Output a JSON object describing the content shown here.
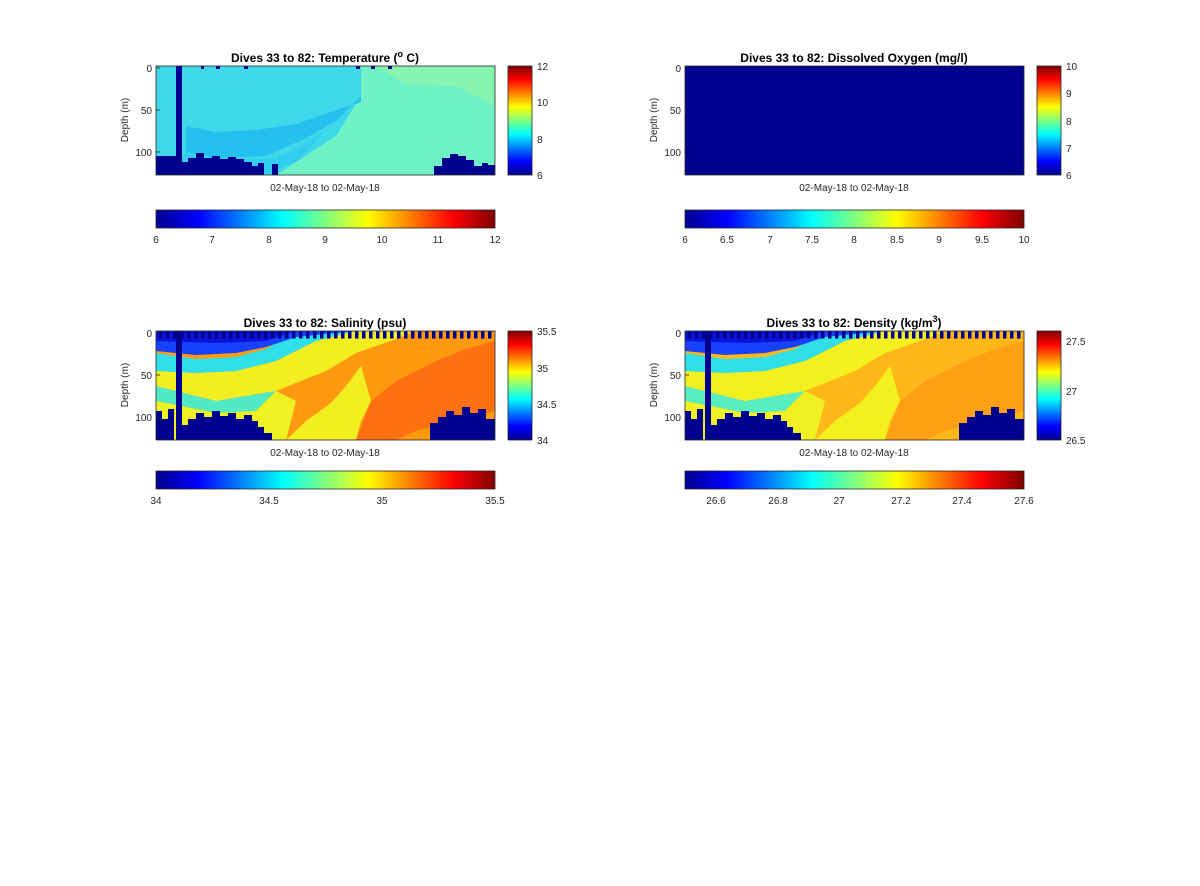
{
  "figure": {
    "panels": [
      {
        "id": "temperature",
        "title_text": "Dives 33 to 82: Temperature (",
        "title_sup": "o",
        "title_suffix": " C)",
        "ylabel": "Depth (m)",
        "xlabel": "02-May-18 to 02-May-18",
        "yticks": [
          "0",
          "50",
          "100"
        ],
        "cbar_ticks": [
          "12",
          "10",
          "8",
          "6"
        ],
        "hbar_ticks": [
          "6",
          "7",
          "8",
          "9",
          "10",
          "11",
          "12"
        ]
      },
      {
        "id": "oxygen",
        "title_text": "Dives 33 to 82: Dissolved Oxygen (mg/l)",
        "title_sup": "",
        "title_suffix": "",
        "ylabel": "Depth (m)",
        "xlabel": "02-May-18 to 02-May-18",
        "yticks": [
          "0",
          "50",
          "100"
        ],
        "cbar_ticks": [
          "10",
          "9",
          "8",
          "7",
          "6"
        ],
        "hbar_ticks": [
          "6",
          "6.5",
          "7",
          "7.5",
          "8",
          "8.5",
          "9",
          "9.5",
          "10"
        ]
      },
      {
        "id": "salinity",
        "title_text": "Dives 33 to 82: Salinity (psu)",
        "title_sup": "",
        "title_suffix": "",
        "ylabel": "Depth (m)",
        "xlabel": "02-May-18 to 02-May-18",
        "yticks": [
          "0",
          "50",
          "100"
        ],
        "cbar_ticks": [
          "35.5",
          "35",
          "34.5",
          "34"
        ],
        "hbar_ticks": [
          "34",
          "34.5",
          "35",
          "35.5"
        ]
      },
      {
        "id": "density",
        "title_text": "Dives 33 to 82: Density (kg/m",
        "title_sup": "3",
        "title_suffix": ")",
        "ylabel": "Depth (m)",
        "xlabel": "02-May-18 to 02-May-18",
        "yticks": [
          "0",
          "50",
          "100"
        ],
        "cbar_ticks": [
          "27.5",
          "27",
          "26.5"
        ],
        "hbar_ticks": [
          "26.6",
          "26.8",
          "27",
          "27.2",
          "27.4",
          "27.6"
        ]
      }
    ]
  },
  "chart_data": [
    {
      "type": "heatmap",
      "title": "Dives 33 to 82: Temperature (o C)",
      "xlabel": "02-May-18 to 02-May-18",
      "ylabel": "Depth (m)",
      "ylim": [
        0,
        127
      ],
      "y_reversed": true,
      "clim": [
        6,
        12
      ],
      "colormap": "jet",
      "approx_values": {
        "surface_left": 7.9,
        "mid_left": 7.4,
        "right_side": 8.6,
        "missing_fill": 6
      }
    },
    {
      "type": "heatmap",
      "title": "Dives 33 to 82: Dissolved Oxygen (mg/l)",
      "xlabel": "02-May-18 to 02-May-18",
      "ylabel": "Depth (m)",
      "ylim": [
        0,
        127
      ],
      "y_reversed": true,
      "clim": [
        6,
        10
      ],
      "colormap": "jet",
      "approx_values": {
        "all": 6
      }
    },
    {
      "type": "heatmap",
      "title": "Dives 33 to 82: Salinity (psu)",
      "xlabel": "02-May-18 to 02-May-18",
      "ylabel": "Depth (m)",
      "ylim": [
        0,
        127
      ],
      "y_reversed": true,
      "clim": [
        34,
        35.5
      ],
      "colormap": "jet",
      "approx_values": {
        "surface_left": 34.15,
        "deep_left": 35.0,
        "surface_right": 35.0,
        "deep_right": 35.3,
        "missing_fill": 34
      }
    },
    {
      "type": "heatmap",
      "title": "Dives 33 to 82: Density (kg/m3)",
      "xlabel": "02-May-18 to 02-May-18",
      "ylabel": "Depth (m)",
      "ylim": [
        0,
        127
      ],
      "y_reversed": true,
      "clim": [
        26.5,
        27.6
      ],
      "colormap": "jet",
      "approx_values": {
        "surface_left": 26.6,
        "deep_left": 27.2,
        "surface_right": 27.2,
        "deep_right": 27.35,
        "missing_fill": 26.5
      }
    }
  ]
}
